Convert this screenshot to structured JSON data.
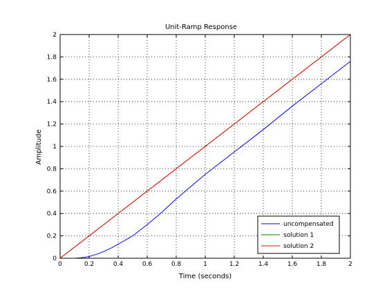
{
  "chart_data": {
    "type": "line",
    "title": "Unit-Ramp Response",
    "xlabel": "Time (seconds)",
    "ylabel": "Amplitude",
    "xlim": [
      0,
      2
    ],
    "ylim": [
      0,
      2
    ],
    "xticks": [
      0,
      0.2,
      0.4,
      0.6,
      0.8,
      1,
      1.2,
      1.4,
      1.6,
      1.8,
      2
    ],
    "xtick_labels": [
      "0",
      "0.2",
      "0.4",
      "0.6",
      "0.8",
      "1",
      "1.2",
      "1.4",
      "1.6",
      "1.8",
      "2"
    ],
    "yticks": [
      0,
      0.2,
      0.4,
      0.6,
      0.8,
      1,
      1.2,
      1.4,
      1.6,
      1.8,
      2
    ],
    "ytick_labels": [
      "0",
      "0.2",
      "0.4",
      "0.6",
      "0.8",
      "1",
      "1.2",
      "1.4",
      "1.6",
      "1.8",
      "2"
    ],
    "grid": true,
    "legend_position": "bottom-right",
    "series": [
      {
        "name": "uncompensated",
        "color": "#0000ff",
        "x": [
          0,
          0.1,
          0.15,
          0.2,
          0.25,
          0.3,
          0.35,
          0.4,
          0.5,
          0.6,
          0.7,
          0.8,
          0.9,
          1.0,
          1.2,
          1.4,
          1.6,
          1.8,
          2.0
        ],
        "y": [
          0,
          0,
          0.005,
          0.015,
          0.035,
          0.06,
          0.09,
          0.125,
          0.2,
          0.3,
          0.41,
          0.53,
          0.64,
          0.75,
          0.95,
          1.15,
          1.36,
          1.56,
          1.76
        ]
      },
      {
        "name": "solution 1",
        "color": "#008000",
        "x": [
          0,
          0.5,
          1.0,
          1.5,
          2.0
        ],
        "y": [
          0,
          0.5,
          1.0,
          1.5,
          2.0
        ]
      },
      {
        "name": "solution 2",
        "color": "#ff0000",
        "x": [
          0,
          0.5,
          1.0,
          1.5,
          2.0
        ],
        "y": [
          0,
          0.5,
          1.0,
          1.5,
          2.0
        ]
      }
    ]
  }
}
